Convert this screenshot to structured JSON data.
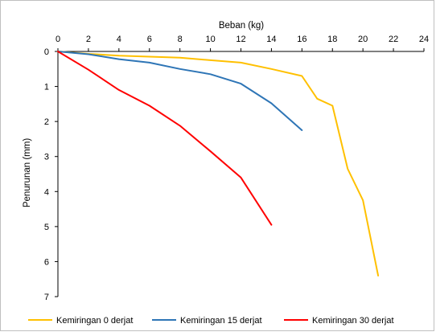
{
  "chart_data": {
    "type": "line",
    "xlabel": "Beban (kg)",
    "ylabel": "Penurunan (mm)",
    "xlim": [
      0,
      24
    ],
    "ylim": [
      0,
      7
    ],
    "x_ticks": [
      "0",
      "2",
      "4",
      "6",
      "8",
      "10",
      "12",
      "14",
      "16",
      "18",
      "20",
      "22",
      "24"
    ],
    "y_ticks": [
      "0",
      "1",
      "2",
      "3",
      "4",
      "5",
      "6",
      "7"
    ],
    "x_axis_position": "top",
    "y_axis_inverted": true,
    "grid": false,
    "legend_position": "bottom",
    "series": [
      {
        "name": "Kemiringan 0 derjat",
        "color": "#FFC000",
        "x": [
          0,
          2,
          4,
          6,
          8,
          10,
          12,
          14,
          16,
          17,
          18,
          19,
          20,
          21
        ],
        "y": [
          0,
          0.07,
          0.12,
          0.15,
          0.18,
          0.25,
          0.32,
          0.5,
          0.7,
          1.35,
          1.55,
          3.35,
          4.25,
          6.4
        ]
      },
      {
        "name": "Kemiringan 15 derjat",
        "color": "#2E75B6",
        "x": [
          0,
          2,
          4,
          6,
          8,
          10,
          12,
          14,
          16
        ],
        "y": [
          0,
          0.08,
          0.22,
          0.32,
          0.5,
          0.65,
          0.92,
          1.48,
          2.25
        ]
      },
      {
        "name": "Kemiringan 30 derjat",
        "color": "#FF0000",
        "x": [
          0,
          2,
          4,
          6,
          8,
          10,
          12,
          14
        ],
        "y": [
          0,
          0.52,
          1.1,
          1.55,
          2.12,
          2.85,
          3.6,
          4.95
        ]
      }
    ]
  }
}
